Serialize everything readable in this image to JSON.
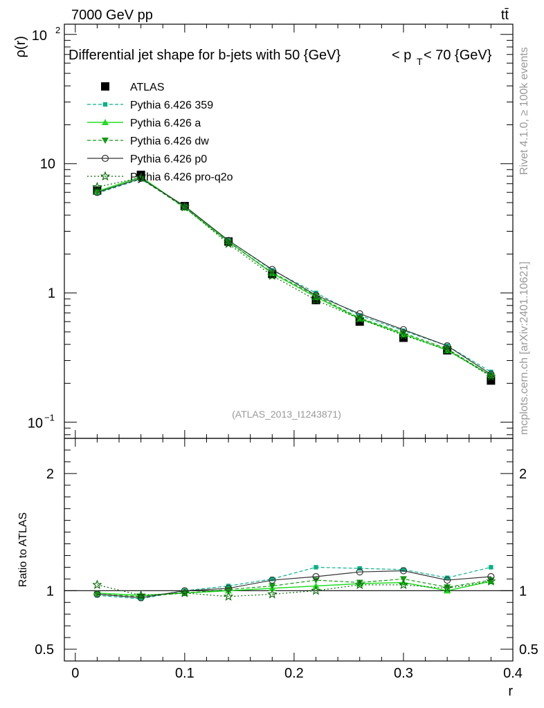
{
  "header": {
    "left": "7000 GeV pp",
    "right": "tt̄"
  },
  "side_labels": {
    "top": "Rivet 4.1.0, ≥ 100k events",
    "bottom": "mcplots.cern.ch [arXiv:2401.10621]"
  },
  "chart_data": [
    {
      "type": "line",
      "title_parts": {
        "a": "Differential jet shape for b-jets with 50 {GeV}",
        "b": "< p",
        "sub": "T",
        "c": " < 70 {GeV}"
      },
      "ylabel": "ρ(r)",
      "yscale": "log",
      "ylim": [
        0.075,
        120
      ],
      "xlim": [
        -0.01,
        0.4
      ],
      "ytick_labels": [
        "10",
        "1",
        "10"
      ],
      "ytick_label_top": "10",
      "ytick_label_top_exp": "2",
      "ytick_label_bottom_exp": "−1",
      "watermark": "(ATLAS_2013_I1243871)",
      "x": [
        0.02,
        0.06,
        0.1,
        0.14,
        0.18,
        0.22,
        0.26,
        0.3,
        0.34,
        0.38
      ],
      "series": [
        {
          "name": "ATLAS",
          "color": "#000000",
          "values": [
            6.2,
            8.2,
            4.7,
            2.5,
            1.4,
            0.88,
            0.6,
            0.45,
            0.36,
            0.21
          ]
        },
        {
          "name": "Pythia 6.426 359",
          "color": "#00b386",
          "values": [
            5.9,
            7.6,
            4.65,
            2.55,
            1.5,
            1.0,
            0.67,
            0.51,
            0.39,
            0.245
          ]
        },
        {
          "name": "Pythia 6.426 a",
          "color": "#22dd22",
          "values": [
            6.1,
            7.9,
            4.6,
            2.5,
            1.42,
            0.93,
            0.63,
            0.48,
            0.36,
            0.23
          ]
        },
        {
          "name": "Pythia 6.426 dw",
          "color": "#119911",
          "values": [
            6.0,
            7.7,
            4.55,
            2.47,
            1.44,
            0.95,
            0.64,
            0.49,
            0.37,
            0.23
          ]
        },
        {
          "name": "Pythia 6.426 p0",
          "color": "#333333",
          "values": [
            6.0,
            7.7,
            4.7,
            2.55,
            1.52,
            0.96,
            0.69,
            0.52,
            0.39,
            0.235
          ]
        },
        {
          "name": "Pythia 6.426 pro-q2o",
          "color": "#006600",
          "values": [
            6.6,
            7.8,
            4.6,
            2.4,
            1.36,
            0.88,
            0.63,
            0.47,
            0.365,
            0.225
          ]
        }
      ]
    },
    {
      "type": "line",
      "ylabel": "Ratio to ATLAS",
      "xlabel": "r",
      "ylim": [
        0.4,
        2.3
      ],
      "xlim": [
        -0.01,
        0.4
      ],
      "yticks": [
        0.5,
        1,
        2
      ],
      "ytick_labels": [
        "0.5",
        "1",
        "2"
      ],
      "xticks": [
        0,
        0.1,
        0.2,
        0.3,
        0.4
      ],
      "xtick_labels": [
        "0",
        "0.1",
        "0.2",
        "0.3",
        "0.4"
      ],
      "x": [
        0.02,
        0.06,
        0.1,
        0.14,
        0.18,
        0.22,
        0.26,
        0.3,
        0.34,
        0.38
      ],
      "series": [
        {
          "name": "Pythia 6.426 359",
          "values": [
            0.96,
            0.93,
            1.0,
            1.04,
            1.1,
            1.2,
            1.19,
            1.18,
            1.11,
            1.2
          ]
        },
        {
          "name": "Pythia 6.426 a",
          "values": [
            0.98,
            0.96,
            0.98,
            1.0,
            1.02,
            1.04,
            1.06,
            1.07,
            1.0,
            1.08
          ]
        },
        {
          "name": "Pythia 6.426 dw",
          "values": [
            0.97,
            0.95,
            0.98,
            1.01,
            1.04,
            1.09,
            1.07,
            1.1,
            1.03,
            1.09
          ]
        },
        {
          "name": "Pythia 6.426 p0",
          "values": [
            0.97,
            0.94,
            1.0,
            1.02,
            1.09,
            1.12,
            1.16,
            1.17,
            1.09,
            1.12
          ]
        },
        {
          "name": "Pythia 6.426 pro-q2o",
          "values": [
            1.05,
            0.96,
            0.98,
            0.95,
            0.97,
            1.0,
            1.05,
            1.05,
            1.02,
            1.08
          ]
        }
      ]
    }
  ]
}
